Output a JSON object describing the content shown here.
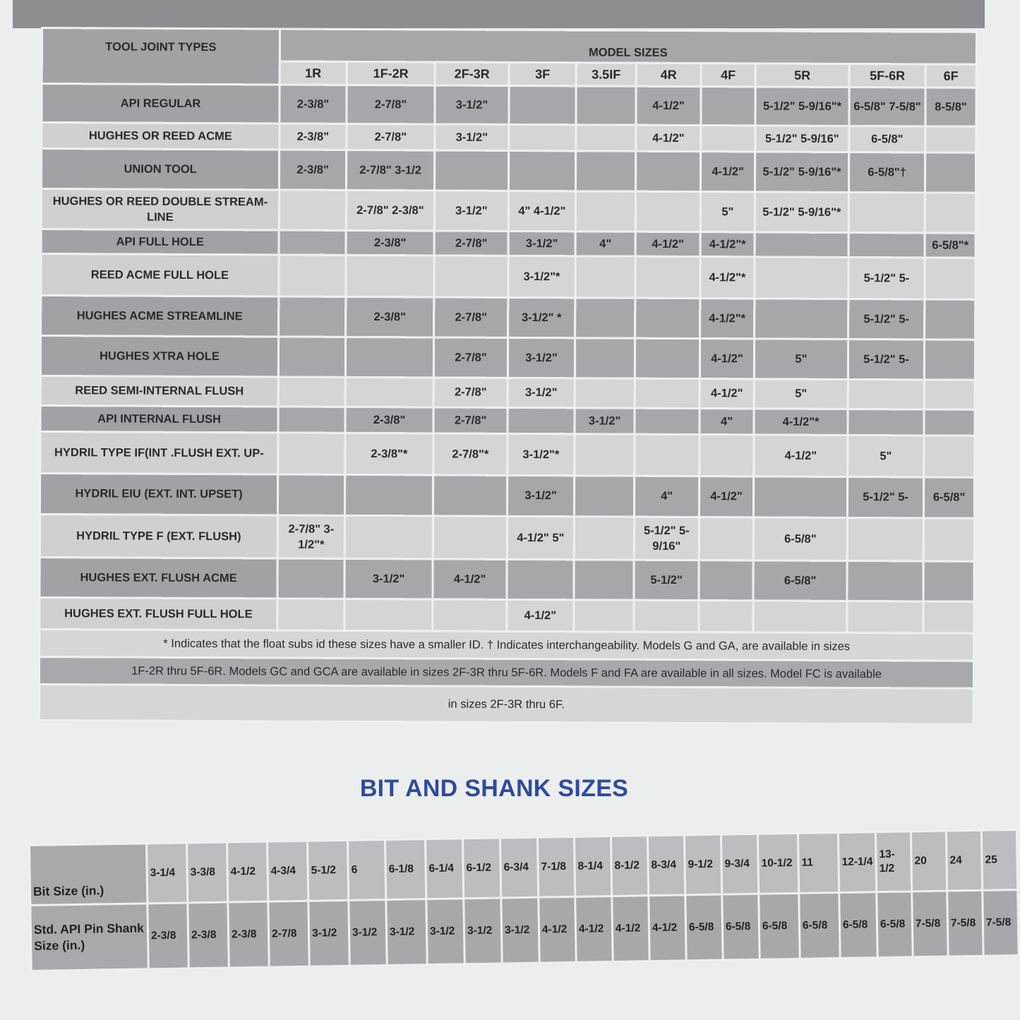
{
  "joint_table": {
    "corner_label": "TOOL JOINT TYPES",
    "group_header": "MODEL SIZES",
    "columns": [
      "1R",
      "1F-2R",
      "2F-3R",
      "3F",
      "3.5IF",
      "4R",
      "4F",
      "5R",
      "5F-6R",
      "6F"
    ],
    "rows": [
      {
        "label": "API REGULAR",
        "cells": [
          "2-3/8\"",
          "2-7/8\"",
          "3-1/2\"",
          "",
          "",
          "4-1/2\"",
          "",
          "5-1/2\"  5-9/16\"*",
          "6-5/8\"  7-5/8\"",
          "8-5/8\""
        ]
      },
      {
        "label": "HUGHES OR REED ACME",
        "cells": [
          "2-3/8\"",
          "2-7/8\"",
          "3-1/2\"",
          "",
          "",
          "4-1/2\"",
          "",
          "5-1/2\"  5-9/16\"",
          "6-5/8\"",
          ""
        ]
      },
      {
        "label": "UNION TOOL",
        "cells": [
          "2-3/8\"",
          "2-7/8\"    3-1/2",
          "",
          "",
          "",
          "",
          "4-1/2\"",
          "5-1/2\"  5-9/16\"*",
          "6-5/8\"†",
          ""
        ]
      },
      {
        "label": "HUGHES OR REED DOUBLE STREAM-LINE",
        "cells": [
          "",
          "2-7/8\"    2-3/8\"",
          "3-1/2\"",
          "4\" 4-1/2\"",
          "",
          "",
          "5\"",
          "5-1/2\"  5-9/16\"*",
          "",
          ""
        ]
      },
      {
        "label": "API FULL HOLE",
        "cells": [
          "",
          "2-3/8\"",
          "2-7/8\"",
          "3-1/2\"",
          "4\"",
          "4-1/2\"",
          "4-1/2\"*",
          "",
          "",
          "6-5/8\"*"
        ]
      },
      {
        "label": "REED ACME FULL HOLE",
        "cells": [
          "",
          "",
          "",
          "3-1/2\"*",
          "",
          "",
          "4-1/2\"*",
          "",
          "5-1/2\"    5-",
          ""
        ]
      },
      {
        "label": "HUGHES ACME STREAMLINE",
        "cells": [
          "",
          "2-3/8\"",
          "2-7/8\"",
          "3-1/2\" *",
          "",
          "",
          "4-1/2\"*",
          "",
          "5-1/2\"    5-",
          ""
        ]
      },
      {
        "label": "HUGHES XTRA HOLE",
        "cells": [
          "",
          "",
          "2-7/8\"",
          "3-1/2\"",
          "",
          "",
          "4-1/2\"",
          "5\"",
          "5-1/2\"    5-",
          ""
        ]
      },
      {
        "label": "REED SEMI-INTERNAL FLUSH",
        "cells": [
          "",
          "",
          "2-7/8\"",
          "3-1/2\"",
          "",
          "",
          "4-1/2\"",
          "5\"",
          "",
          ""
        ]
      },
      {
        "label": "API INTERNAL FLUSH",
        "cells": [
          "",
          "2-3/8\"",
          "2-7/8\"",
          "",
          "3-1/2\"",
          "",
          "4\"",
          "4-1/2\"*",
          "",
          ""
        ]
      },
      {
        "label": "HYDRIL TYPE IF(INT .FLUSH EXT. UP-",
        "cells": [
          "",
          "2-3/8\"*",
          "2-7/8\"*",
          "3-1/2\"*",
          "",
          "",
          "",
          "4-1/2\"",
          "5\"",
          ""
        ]
      },
      {
        "label": "HYDRIL EIU (EXT. INT. UPSET)",
        "cells": [
          "",
          "",
          "",
          "3-1/2\"",
          "",
          "4\"",
          "4-1/2\"",
          "",
          "5-1/2\"    5-",
          "6-5/8\""
        ]
      },
      {
        "label": "HYDRIL TYPE F (EXT. FLUSH)",
        "cells": [
          "2-7/8\" 3-1/2\"*",
          "",
          "",
          "4-1/2\" 5\"",
          "",
          "5-1/2\" 5-9/16\"",
          "",
          "6-5/8\"",
          "",
          ""
        ]
      },
      {
        "label": "HUGHES EXT. FLUSH ACME",
        "cells": [
          "",
          "3-1/2\"",
          "4-1/2\"",
          "",
          "",
          "5-1/2\"",
          "",
          "6-5/8\"",
          "",
          ""
        ]
      },
      {
        "label": "HUGHES EXT. FLUSH FULL HOLE",
        "cells": [
          "",
          "",
          "",
          "4-1/2\"",
          "",
          "",
          "",
          "",
          "",
          ""
        ]
      }
    ],
    "notes": [
      "* Indicates that the float subs id these sizes have a smaller ID.  † Indicates interchangeability. Models G and GA, are available in sizes",
      "1F-2R thru 5F-6R. Models GC and GCA are available in sizes 2F-3R thru 5F-6R. Models F and FA are available in all sizes. Model FC is available",
      "in sizes 2F-3R thru 6F."
    ]
  },
  "bit_section": {
    "title": "BIT AND SHANK SIZES",
    "bit_size_label": "Bit Size (in.)",
    "shank_size_label": "Std. API Pin Shank Size (in.)",
    "bit_sizes": [
      "3-1/4",
      "3-3/8",
      "4-1/2",
      "4-3/4",
      "5-1/2",
      "6",
      "6-1/8",
      "6-1/4",
      "6-1/2",
      "6-3/4",
      "7-1/8",
      "8-1/4",
      "8-1/2",
      "8-3/4",
      "9-1/2",
      "9-3/4",
      "10-1/2",
      "11",
      "12-1/4",
      "13-1/2",
      "20",
      "24",
      "25"
    ],
    "shank_sizes": [
      "2-3/8",
      "2-3/8",
      "2-3/8",
      "2-7/8",
      "3-1/2",
      "3-1/2",
      "3-1/2",
      "3-1/2",
      "3-1/2",
      "3-1/2",
      "4-1/2",
      "4-1/2",
      "4-1/2",
      "4-1/2",
      "6-5/8",
      "6-5/8",
      "6-5/8",
      "6-5/8",
      "6-5/8",
      "6-5/8",
      "7-5/8",
      "7-5/8",
      "7-5/8"
    ]
  },
  "colors": {
    "title_blue": "#2f4c9c",
    "dark_row": "#a7a7a9",
    "light_row": "#d5d5d6",
    "page": "#eceeed"
  }
}
